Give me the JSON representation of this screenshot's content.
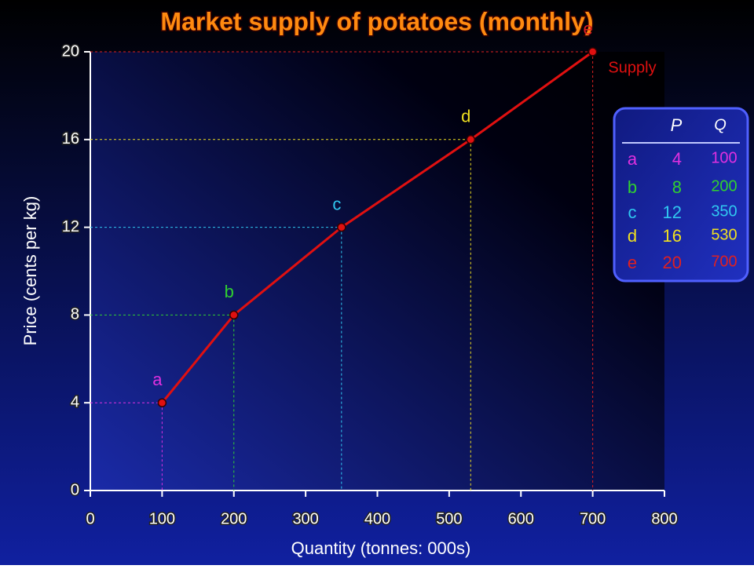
{
  "chart_data": {
    "type": "line",
    "title": "Market supply of potatoes (monthly)",
    "x_label": "Quantity (tonnes: 000s)",
    "y_label": "Price (cents per kg)",
    "x": [
      100,
      200,
      350,
      530,
      700
    ],
    "series": [
      {
        "name": "Supply",
        "color": "#e01010",
        "values": [
          4,
          8,
          12,
          16,
          20
        ]
      }
    ],
    "point_labels": [
      "a",
      "b",
      "c",
      "d",
      "e"
    ],
    "point_colors": [
      "#e030e0",
      "#30d030",
      "#30c8f0",
      "#f0e020",
      "#e02020"
    ],
    "xlim": [
      0,
      800
    ],
    "xticks": [
      0,
      100,
      200,
      300,
      400,
      500,
      600,
      700,
      800
    ],
    "ylim": [
      0,
      20
    ],
    "yticks": [
      0,
      4,
      8,
      12,
      16,
      20
    ],
    "table_headers": [
      "P",
      "Q"
    ]
  }
}
